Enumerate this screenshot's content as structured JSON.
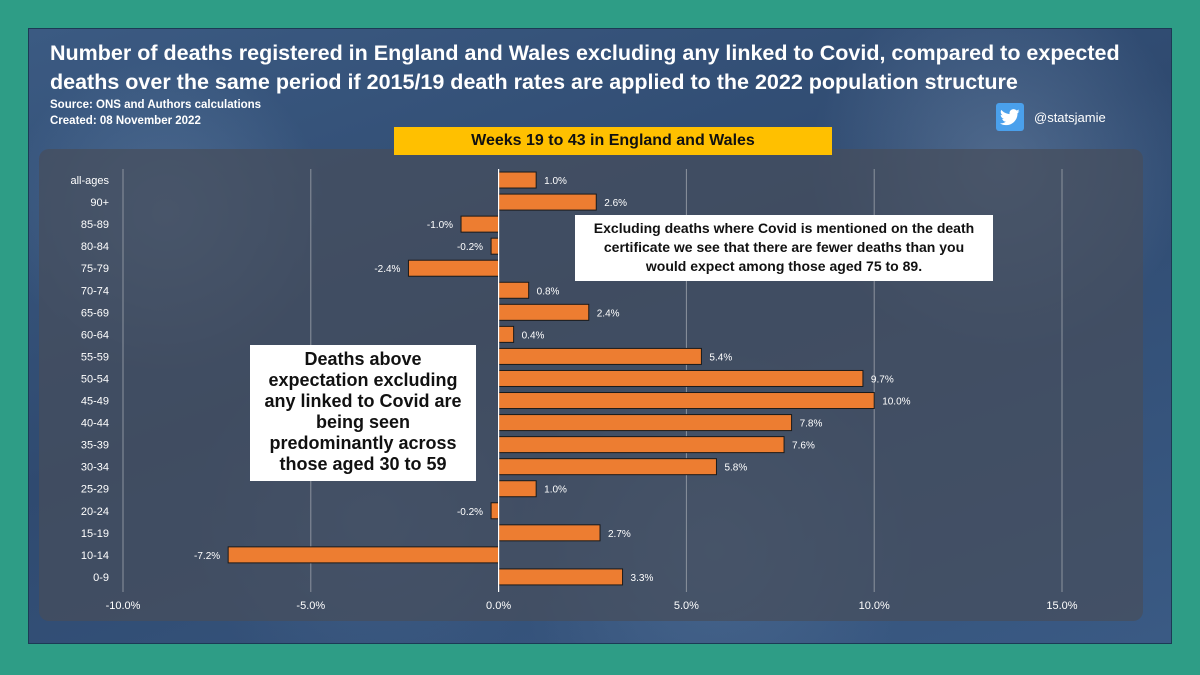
{
  "header": {
    "title": "Number of deaths registered in England and Wales excluding any linked to Covid, compared to expected deaths over the same period if 2015/19 death rates are applied to the 2022 population structure",
    "source": "Source: ONS and Authors calculations",
    "created": "Created: 08 November 2022",
    "twitter_handle": "@statsjamie"
  },
  "banner": {
    "text": "Weeks 19 to 43 in England and Wales"
  },
  "annotations": {
    "right": "Excluding deaths where Covid is mentioned on the death certificate we see that there are fewer deaths than you would expect among those aged 75 to 89.",
    "left": "Deaths above expectation excluding any linked to Covid are being seen predominantly across those aged 30 to 59"
  },
  "colors": {
    "bar": "#ed7d31",
    "background_outer": "#2e9d86",
    "banner": "#ffc000",
    "twitter": "#4aa0ec"
  },
  "chart_data": {
    "type": "bar",
    "orientation": "horizontal",
    "categories": [
      "all-ages",
      "90+",
      "85-89",
      "80-84",
      "75-79",
      "70-74",
      "65-69",
      "60-64",
      "55-59",
      "50-54",
      "45-49",
      "40-44",
      "35-39",
      "30-34",
      "25-29",
      "20-24",
      "15-19",
      "10-14",
      "0-9"
    ],
    "values": [
      1.0,
      2.6,
      -1.0,
      -0.2,
      -2.4,
      0.8,
      2.4,
      0.4,
      5.4,
      9.7,
      10.0,
      7.8,
      7.6,
      5.8,
      1.0,
      -0.2,
      2.7,
      -7.2,
      3.3
    ],
    "data_labels": [
      "1.0%",
      "2.6%",
      "-1.0%",
      "-0.2%",
      "-2.4%",
      "0.8%",
      "2.4%",
      "0.4%",
      "5.4%",
      "9.7%",
      "10.0%",
      "7.8%",
      "7.6%",
      "5.8%",
      "1.0%",
      "-0.2%",
      "2.7%",
      "-7.2%",
      "3.3%"
    ],
    "xlim": [
      -10,
      15
    ],
    "x_ticks": [
      -10,
      -5,
      0,
      5,
      10,
      15
    ],
    "x_tick_labels": [
      "-10.0%",
      "-5.0%",
      "0.0%",
      "5.0%",
      "10.0%",
      "15.0%"
    ],
    "grid": true,
    "legend": false
  }
}
